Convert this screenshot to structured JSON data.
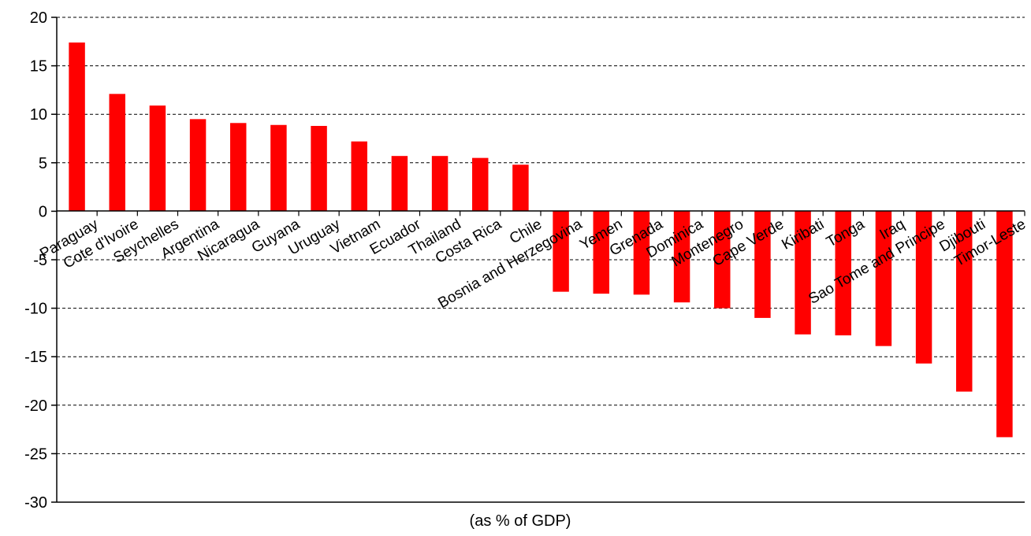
{
  "chart_data": {
    "type": "bar",
    "title": "",
    "xlabel": "(as % of GDP)",
    "ylabel": "",
    "ylim": [
      -30,
      20
    ],
    "yticks": [
      20,
      15,
      10,
      5,
      0,
      -5,
      -10,
      -15,
      -20,
      -25,
      -30
    ],
    "grid": true,
    "categories": [
      "Paraguay",
      "Cote d'Ivoire",
      "Seychelles",
      "Argentina",
      "Nicaragua",
      "Guyana",
      "Uruguay",
      "Vietnam",
      "Ecuador",
      "Thailand",
      "Costa Rica",
      "Chile",
      "Bosnia and Herzegovina",
      "Yemen",
      "Grenada",
      "Dominica",
      "Montenegro",
      "Cape Verde",
      "Kiribati",
      "Tonga",
      "Iraq",
      "Sao Tome and Principe",
      "Djibouti",
      "Timor-Leste"
    ],
    "values": [
      17.4,
      12.1,
      10.9,
      9.5,
      9.1,
      8.9,
      8.8,
      7.2,
      5.7,
      5.7,
      5.5,
      4.8,
      -8.3,
      -8.5,
      -8.6,
      -9.4,
      -10.0,
      -11.0,
      -12.7,
      -12.8,
      -13.9,
      -15.7,
      -18.6,
      -23.3
    ],
    "bar_color": "#ff0000"
  }
}
